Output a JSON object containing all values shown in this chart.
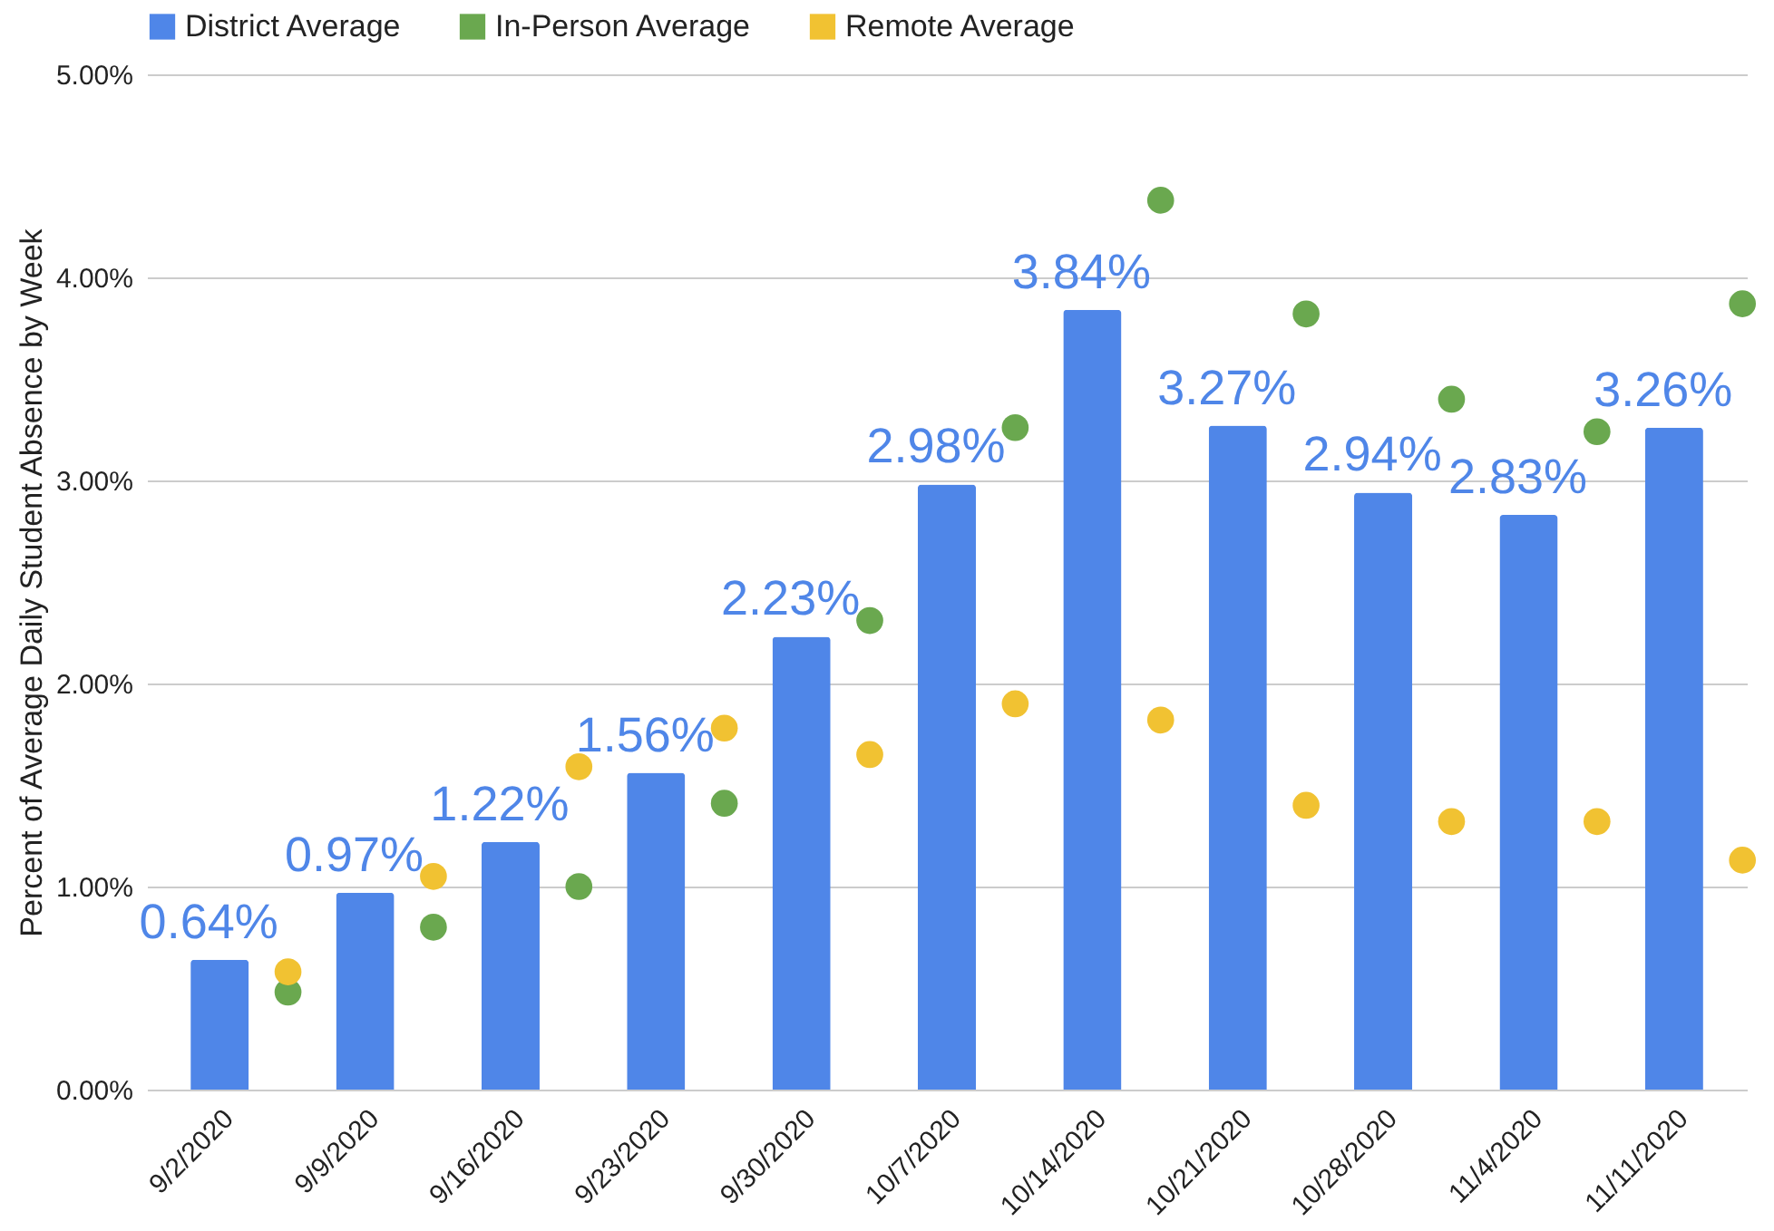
{
  "chart_data": {
    "type": "bar",
    "ylabel": "Percent of Average Daily Student Absence by Week",
    "categories": [
      "9/2/2020",
      "9/9/2020",
      "9/16/2020",
      "9/23/2020",
      "9/30/2020",
      "10/7/2020",
      "10/14/2020",
      "10/21/2020",
      "10/28/2020",
      "11/4/2020",
      "11/11/2020"
    ],
    "series": [
      {
        "name": "District Average",
        "color": "#4f86e8",
        "values": [
          0.64,
          0.97,
          1.22,
          1.56,
          2.23,
          2.98,
          3.84,
          3.27,
          2.94,
          2.83,
          3.26
        ],
        "value_labels": [
          "0.64%",
          "0.97%",
          "1.22%",
          "1.56%",
          "2.23%",
          "2.98%",
          "3.84%",
          "3.27%",
          "2.94%",
          "2.83%",
          "3.26%"
        ]
      },
      {
        "name": "In-Person Average",
        "type": "scatter",
        "color": "#6aa84f",
        "values": [
          0.48,
          0.8,
          1.0,
          1.41,
          2.31,
          3.26,
          4.38,
          3.82,
          3.4,
          3.24,
          3.87
        ]
      },
      {
        "name": "Remote Average",
        "type": "scatter",
        "color": "#f1c232",
        "values": [
          0.58,
          1.05,
          1.59,
          1.78,
          1.65,
          1.9,
          1.82,
          1.4,
          1.32,
          1.32,
          1.13
        ]
      }
    ],
    "ylim": [
      0,
      5
    ],
    "yticks": [
      {
        "value": 0,
        "label": "0.00%"
      },
      {
        "value": 1,
        "label": "1.00%"
      },
      {
        "value": 2,
        "label": "2.00%"
      },
      {
        "value": 3,
        "label": "3.00%"
      },
      {
        "value": 4,
        "label": "4.00%"
      },
      {
        "value": 5,
        "label": "5.00%"
      }
    ],
    "grid": "y",
    "legend": "top",
    "marker": "circle"
  }
}
